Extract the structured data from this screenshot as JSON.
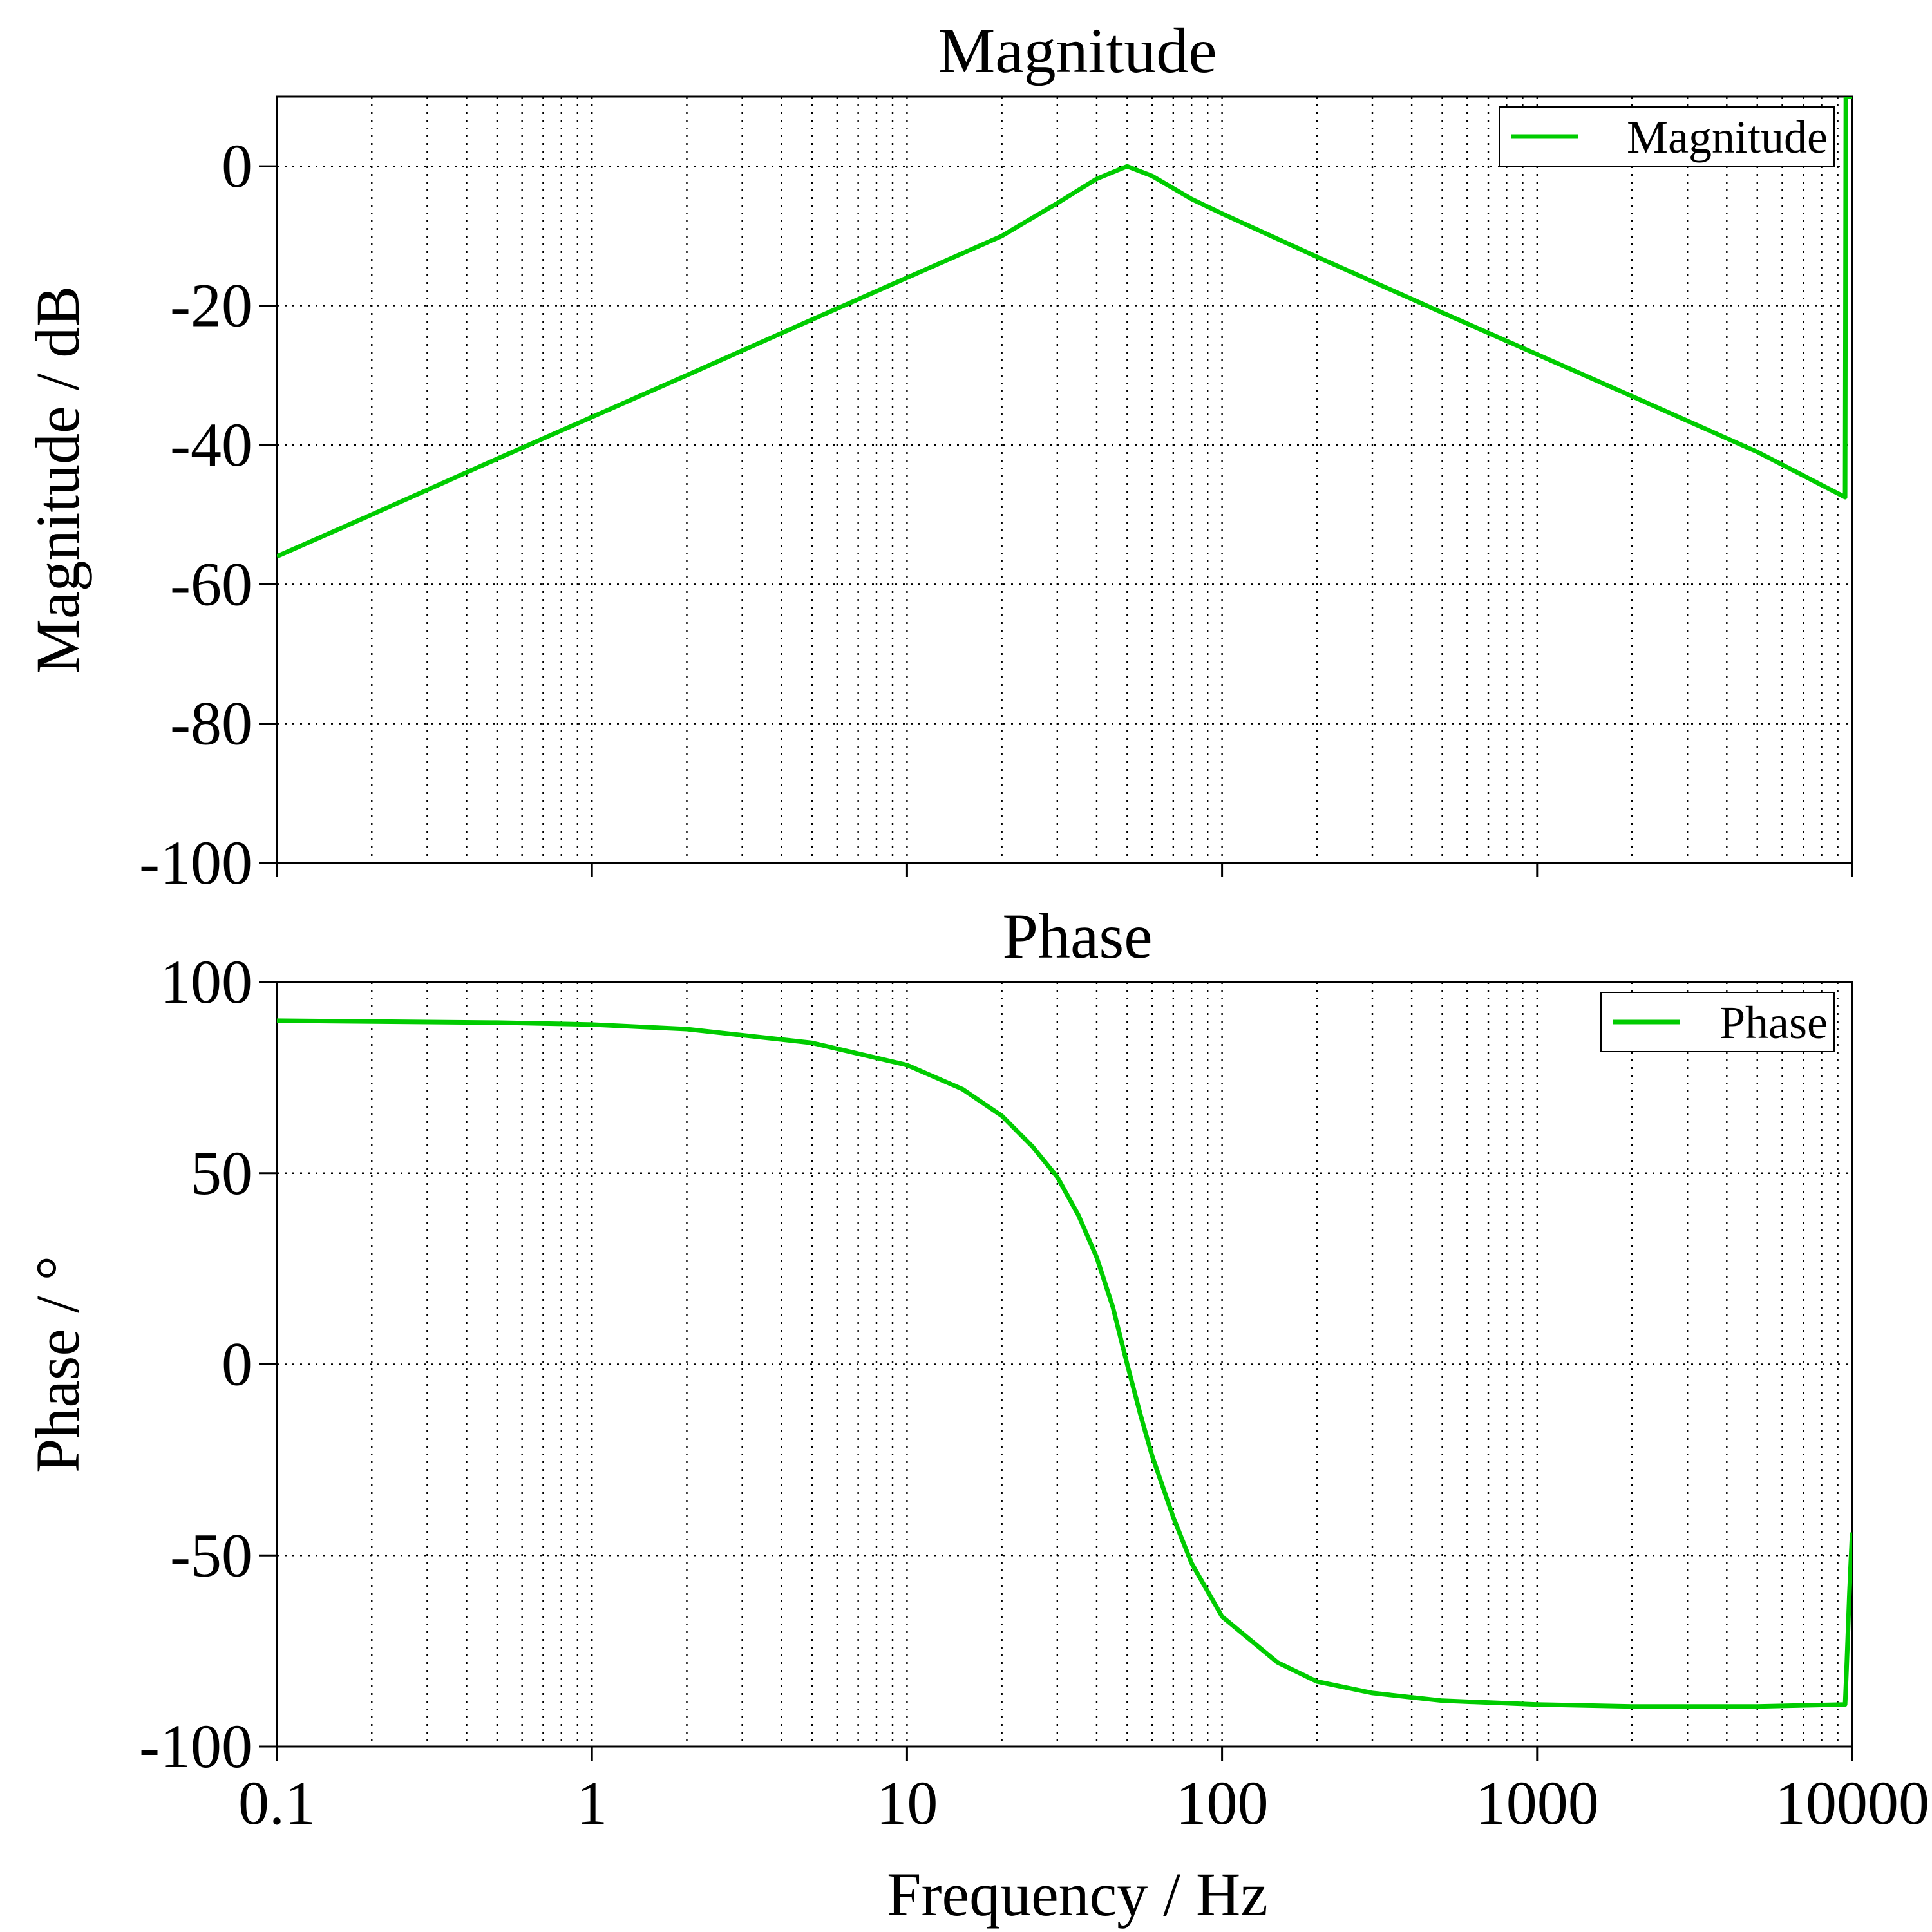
{
  "colors": {
    "line": "#00cc00",
    "grid": "#000000",
    "background": "#ffffff"
  },
  "chart_data": [
    {
      "type": "line",
      "title": "Magnitude",
      "xlabel": "",
      "ylabel": "Magnitude / dB",
      "x_scale": "log",
      "xlim": [
        0.1,
        10000
      ],
      "ylim": [
        -100,
        10
      ],
      "yticks": [
        0,
        -20,
        -40,
        -60,
        -80,
        -100
      ],
      "ytick_labels": [
        "0",
        "-20",
        "-40",
        "-60",
        "-80",
        "-100"
      ],
      "grid": true,
      "legend": "top-right",
      "series": [
        {
          "name": "Magnitude",
          "color": "#00cc00",
          "x": [
            0.1,
            0.2,
            0.5,
            1,
            2,
            5,
            10,
            20,
            30,
            40,
            50,
            60,
            80,
            100,
            200,
            500,
            1000,
            2000,
            5000,
            9500,
            9550,
            10000
          ],
          "values": [
            -56,
            -50,
            -42,
            -36,
            -30,
            -22,
            -16,
            -10,
            -5.3,
            -1.8,
            0,
            -1.4,
            -4.7,
            -6.8,
            -13,
            -21,
            -27,
            -33,
            -41,
            -47.5,
            10,
            10
          ]
        }
      ]
    },
    {
      "type": "line",
      "title": "Phase",
      "xlabel": "Frequency / Hz",
      "ylabel": "Phase / °",
      "x_scale": "log",
      "xlim": [
        0.1,
        10000
      ],
      "ylim": [
        -100,
        100
      ],
      "xticks": [
        0.1,
        1,
        10,
        100,
        1000,
        10000
      ],
      "xtick_labels": [
        "0.1",
        "1",
        "10",
        "100",
        "1000",
        "10000"
      ],
      "yticks": [
        100,
        50,
        0,
        -50,
        -100
      ],
      "ytick_labels": [
        "100",
        "50",
        "0",
        "-50",
        "-100"
      ],
      "grid": true,
      "legend": "top-right",
      "series": [
        {
          "name": "Phase",
          "color": "#00cc00",
          "x": [
            0.1,
            0.5,
            1,
            2,
            5,
            10,
            15,
            20,
            25,
            30,
            35,
            40,
            45,
            50,
            55,
            60,
            70,
            80,
            100,
            150,
            200,
            300,
            500,
            1000,
            2000,
            5000,
            9500,
            9600,
            9800,
            10000
          ],
          "values": [
            89.9,
            89.4,
            88.9,
            87.7,
            84.1,
            78.3,
            72,
            65,
            57,
            49,
            39,
            28,
            15,
            0,
            -13,
            -24,
            -40,
            -52,
            -66,
            -78,
            -83,
            -86,
            -88,
            -89,
            -89.5,
            -89.5,
            -89,
            -80,
            -60,
            -44
          ]
        }
      ]
    }
  ]
}
